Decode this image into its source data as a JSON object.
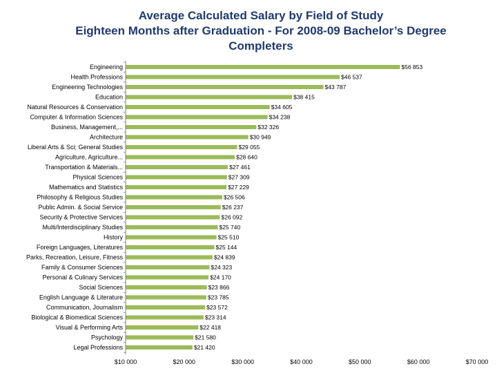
{
  "chart_data": {
    "type": "bar",
    "orientation": "horizontal",
    "title_lines": [
      "Average Calculated Salary by Field of Study",
      "Eighteen Months after Graduation - For 2008-09 Bachelor’s Degree",
      "Completers"
    ],
    "categories": [
      "Engineering",
      "Health Professions",
      "Engineering Technologies",
      "Education",
      "Natural Resources & Conservation",
      "Computer & Information Sciences",
      "Business, Management,...",
      "Architecture",
      "Liberal Arts & Sci; General Studies",
      "Agriculture, Agriculture...",
      "Transportation & Materials...",
      "Physical Sciences",
      "Mathematics and Statistics",
      "Philosophy & Religious Studies",
      "Public Admin. & Social Service",
      "Security & Protective Services",
      "Multi/Interdisciplinary Studies",
      "History",
      "Foreign Languages, Literatures",
      "Parks, Recreation, Leisure, Fitness",
      "Family & Consumer Sciences",
      "Personal & Culinary Services",
      "Social Sciences",
      "English Language & Literature",
      "Communication, Journalism",
      "Biological & Biomedical Sciences",
      "Visual & Performing Arts",
      "Psychology",
      "Legal Professions"
    ],
    "values": [
      56853,
      46537,
      43787,
      38415,
      34605,
      34238,
      32326,
      30949,
      29055,
      28640,
      27461,
      27309,
      27229,
      26506,
      26237,
      26092,
      25740,
      25510,
      25144,
      24839,
      24323,
      24170,
      23866,
      23785,
      23572,
      23314,
      22418,
      21580,
      21420
    ],
    "value_labels": [
      "$56 853",
      "$46 537",
      "$43 787",
      "$38 415",
      "$34 605",
      "$34 238",
      "$32 326",
      "$30 949",
      "$29 055",
      "$28 640",
      "$27 461",
      "$27 309",
      "$27 229",
      "$26 506",
      "$26 237",
      "$26 092",
      "$25 740",
      "$25 510",
      "$25 144",
      "$24 839",
      "$24 323",
      "$24 170",
      "$23 866",
      "$23 785",
      "$23 572",
      "$23 314",
      "$22 418",
      "$21 580",
      "$21 420"
    ],
    "xlim": [
      10000,
      70000
    ],
    "xticks": [
      10000,
      20000,
      30000,
      40000,
      50000,
      60000,
      70000
    ],
    "xtick_labels": [
      "$10 000",
      "$20 000",
      "$30 000",
      "$40 000",
      "$50 000",
      "$60 000",
      "$70 000"
    ],
    "xlabel": "",
    "ylabel": "",
    "grid": false,
    "legend": "none"
  },
  "colors": {
    "bar": "#9bbb59",
    "title": "#1f3a6e",
    "axis": "#808080",
    "text": "#000000"
  }
}
